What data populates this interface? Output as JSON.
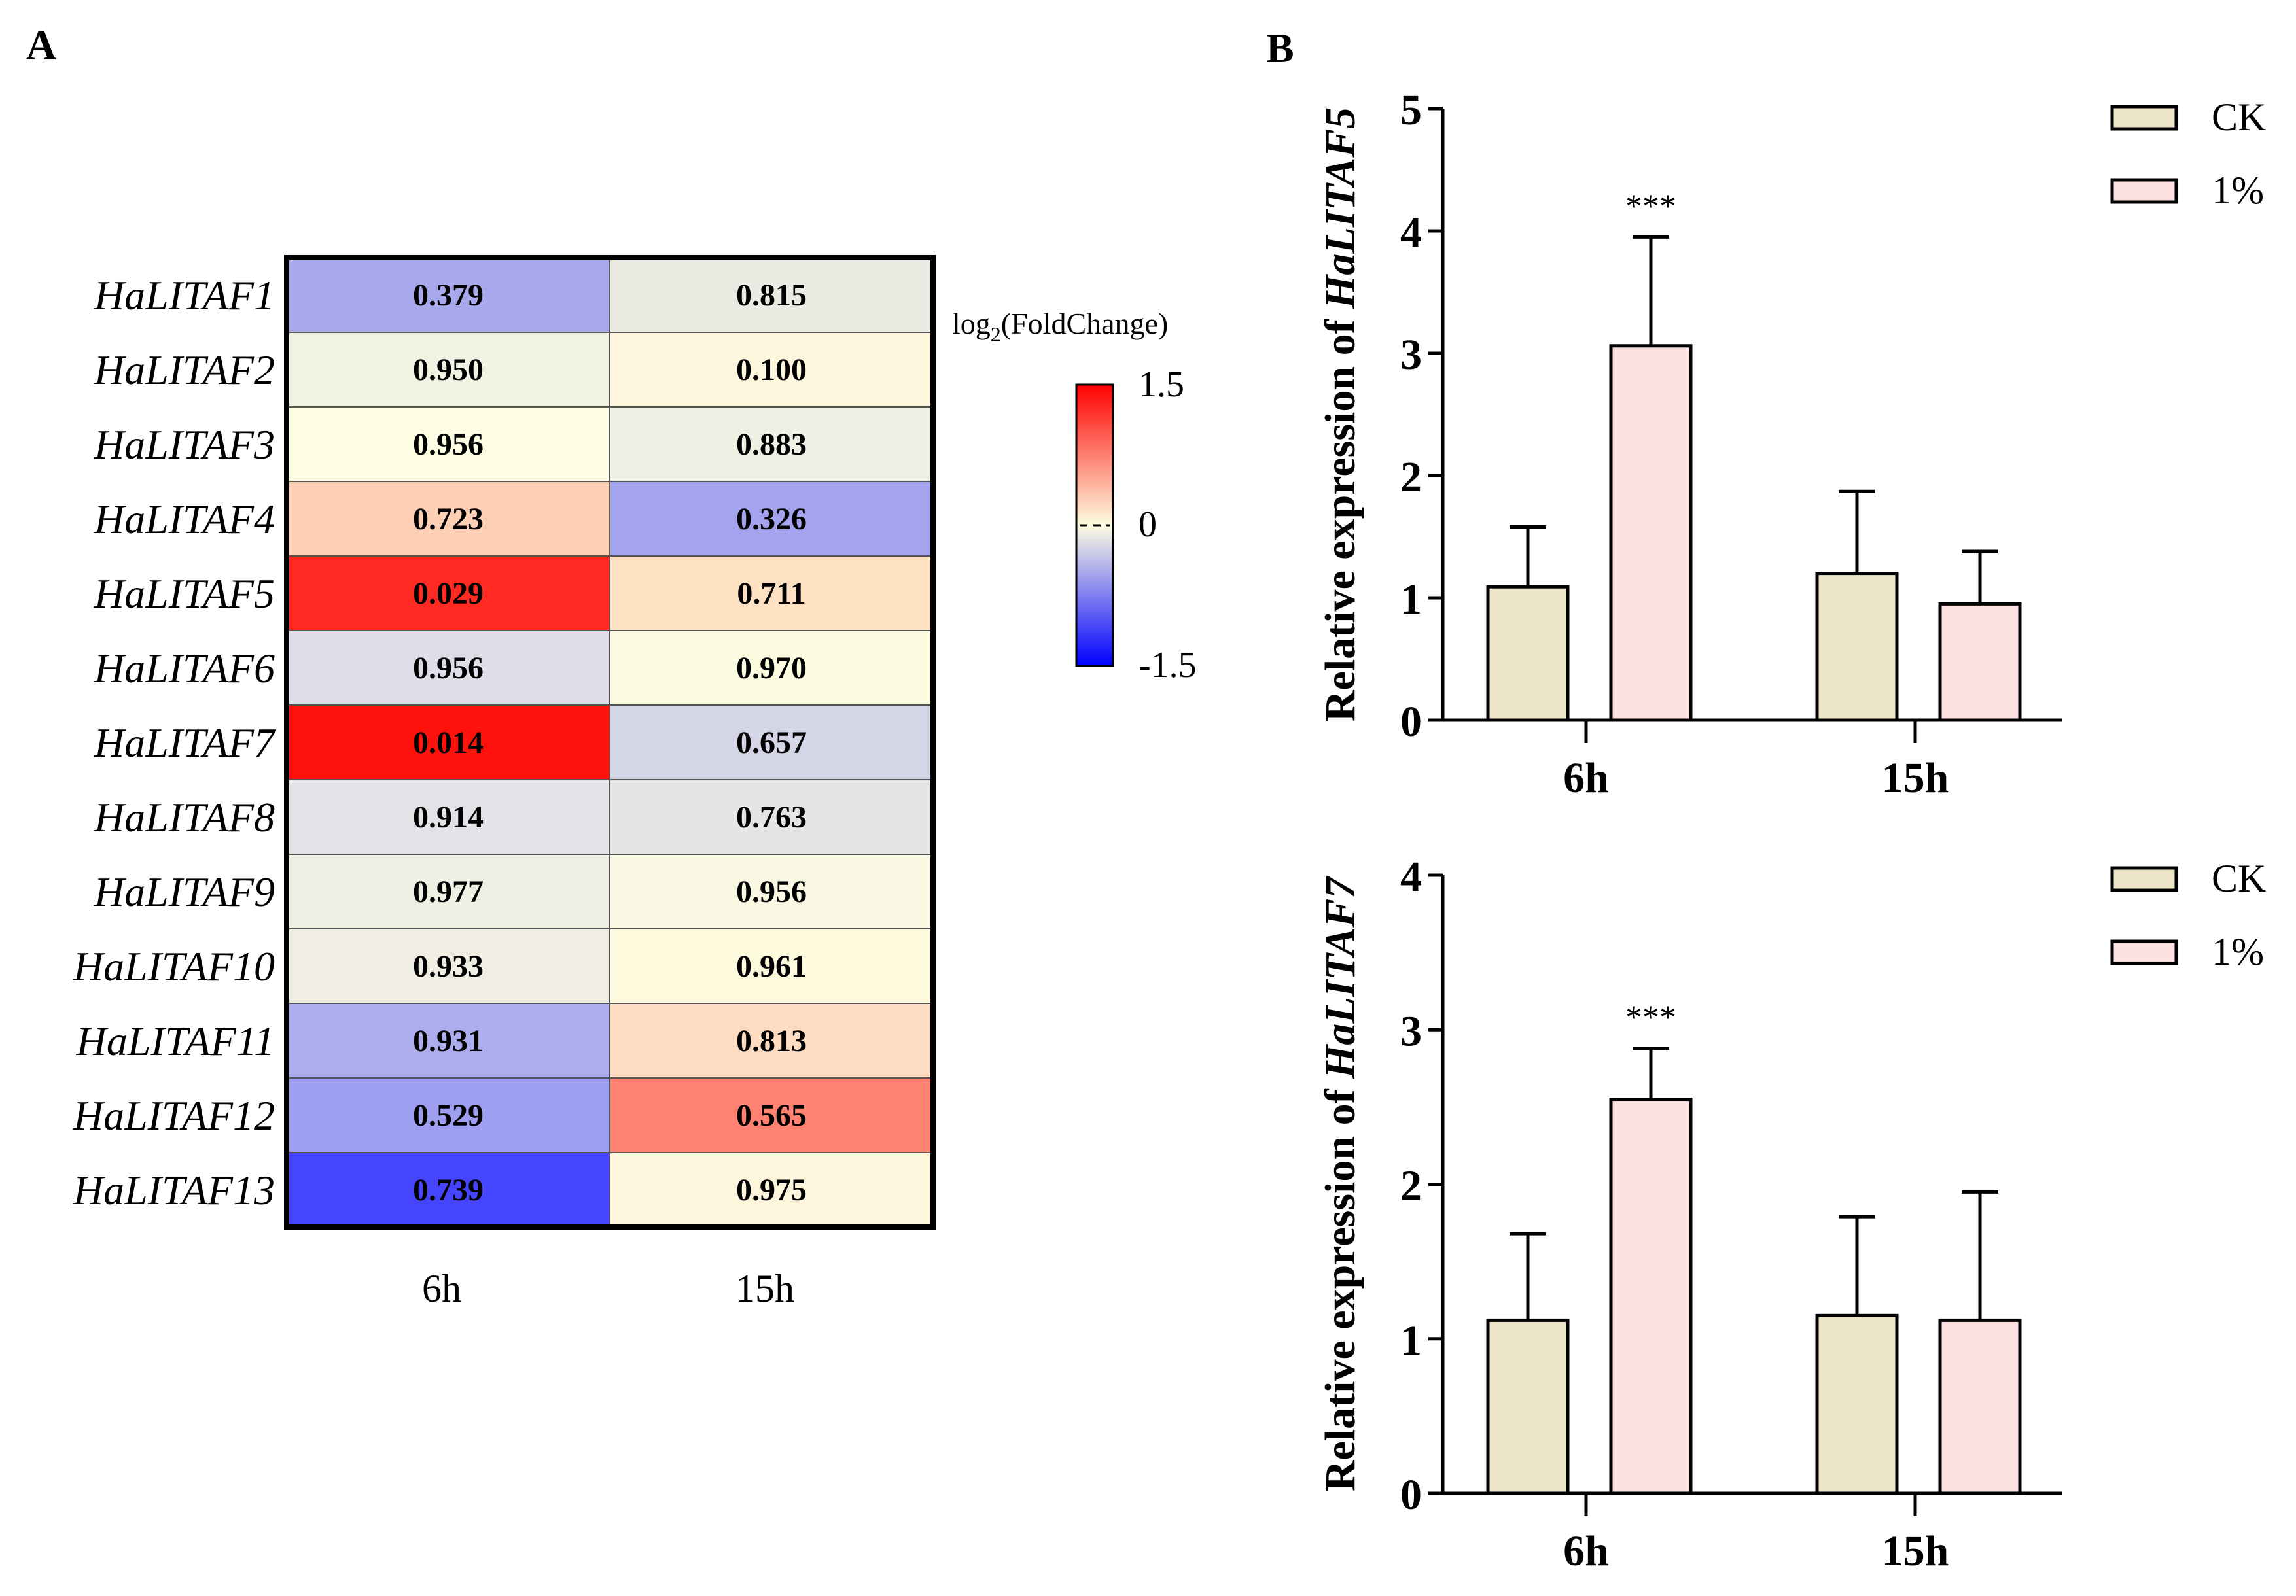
{
  "panel_labels": {
    "a": "A",
    "b": "B"
  },
  "chart_data": [
    {
      "type": "heatmap",
      "title": "",
      "rows": [
        "HaLITAF1",
        "HaLITAF2",
        "HaLITAF3",
        "HaLITAF4",
        "HaLITAF5",
        "HaLITAF6",
        "HaLITAF7",
        "HaLITAF8",
        "HaLITAF9",
        "HaLITAF10",
        "HaLITAF11",
        "HaLITAF12",
        "HaLITAF13"
      ],
      "columns": [
        "6h",
        "15h"
      ],
      "cell_labels": [
        [
          "0.379",
          "0.815"
        ],
        [
          "0.950",
          "0.100"
        ],
        [
          "0.956",
          "0.883"
        ],
        [
          "0.723",
          "0.326"
        ],
        [
          "0.029",
          "0.711"
        ],
        [
          "0.956",
          "0.970"
        ],
        [
          "0.014",
          "0.657"
        ],
        [
          "0.914",
          "0.763"
        ],
        [
          "0.977",
          "0.956"
        ],
        [
          "0.933",
          "0.961"
        ],
        [
          "0.931",
          "0.813"
        ],
        [
          "0.529",
          "0.565"
        ],
        [
          "0.739",
          "0.975"
        ]
      ],
      "cell_colors": [
        [
          "#a7a9ec",
          "#ebebe3"
        ],
        [
          "#f2f2e3",
          "#fdf6dc"
        ],
        [
          "#fdfde3",
          "#f0efe3"
        ],
        [
          "#fdd0b6",
          "#a3a3ee"
        ],
        [
          "#ff2a22",
          "#fee0c3"
        ],
        [
          "#dedde8",
          "#fcfce0"
        ],
        [
          "#ff120c",
          "#d5d5e8"
        ],
        [
          "#e3e2e6",
          "#e6e5e6"
        ],
        [
          "#f0efe3",
          "#f8f8e3"
        ],
        [
          "#f0eee3",
          "#fefadd"
        ],
        [
          "#aeadee",
          "#fedcc1"
        ],
        [
          "#9e9ff0",
          "#ff8272"
        ],
        [
          "#4545fe",
          "#fdf5dc"
        ]
      ],
      "colorbar": {
        "title_prefix": "log",
        "title_sub": "2",
        "title_suffix": "(FoldChange)",
        "range": [
          -1.5,
          1.5
        ],
        "ticks": [
          "1.5",
          "0",
          "-1.5"
        ],
        "colors": [
          "#ff0000",
          "#fdfde0",
          "#0000ff"
        ]
      }
    },
    {
      "type": "bar",
      "ylabel_prefix": "Relative expression of ",
      "ylabel_gene": "HaLITAF5",
      "categories": [
        "6h",
        "15h"
      ],
      "ylim": [
        0,
        5
      ],
      "yticks": [
        "0",
        "1",
        "2",
        "3",
        "4",
        "5"
      ],
      "series": [
        {
          "name": "CK",
          "color": "#ede6c8",
          "values": [
            1.09,
            1.2
          ],
          "error": [
            0.49,
            0.67
          ]
        },
        {
          "name": "1%",
          "color": "#fde0e0",
          "values": [
            3.06,
            0.95
          ],
          "error": [
            0.89,
            0.43
          ]
        }
      ],
      "annotations": [
        {
          "category": "6h",
          "series": "1%",
          "text": "***"
        }
      ],
      "legend": "top-right"
    },
    {
      "type": "bar",
      "ylabel_prefix": "Relative expression of ",
      "ylabel_gene": "HaLITAF7",
      "categories": [
        "6h",
        "15h"
      ],
      "ylim": [
        0,
        4
      ],
      "yticks": [
        "0",
        "1",
        "2",
        "3",
        "4"
      ],
      "series": [
        {
          "name": "CK",
          "color": "#ede6c8",
          "values": [
            1.12,
            1.15
          ],
          "error": [
            0.56,
            0.64
          ]
        },
        {
          "name": "1%",
          "color": "#fde0e0",
          "values": [
            2.55,
            1.12
          ],
          "error": [
            0.33,
            0.83
          ]
        }
      ],
      "annotations": [
        {
          "category": "6h",
          "series": "1%",
          "text": "***"
        }
      ],
      "legend": "top-right"
    }
  ]
}
